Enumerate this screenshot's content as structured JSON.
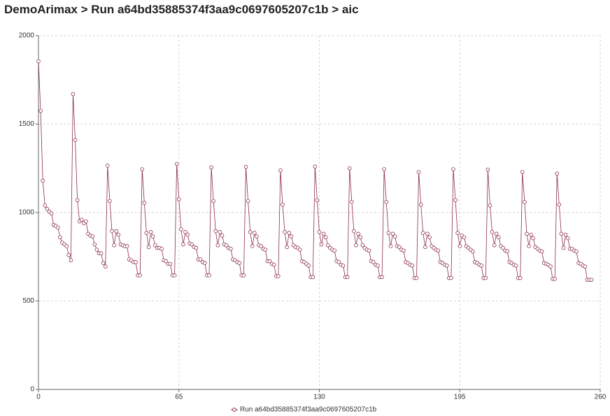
{
  "title": "DemoArimax > Run a64bd35885374f3aa9c0697605207c1b > aic",
  "chart_data": {
    "type": "line",
    "x": [
      0,
      1,
      2,
      3,
      4,
      5,
      6,
      7,
      8,
      9,
      10,
      11,
      12,
      13,
      14,
      15,
      16,
      17,
      18,
      19,
      20,
      21,
      22,
      23,
      24,
      25,
      26,
      27,
      28,
      29,
      30,
      31,
      32,
      33,
      34,
      35,
      36,
      37,
      38,
      39,
      40,
      41,
      42,
      43,
      44,
      45,
      46,
      47,
      48,
      49,
      50,
      51,
      52,
      53,
      54,
      55,
      56,
      57,
      58,
      59,
      60,
      61,
      62,
      63,
      64,
      65,
      66,
      67,
      68,
      69,
      70,
      71,
      72,
      73,
      74,
      75,
      76,
      77,
      78,
      79,
      80,
      81,
      82,
      83,
      84,
      85,
      86,
      87,
      88,
      89,
      90,
      91,
      92,
      93,
      94,
      95,
      96,
      97,
      98,
      99,
      100,
      101,
      102,
      103,
      104,
      105,
      106,
      107,
      108,
      109,
      110,
      111,
      112,
      113,
      114,
      115,
      116,
      117,
      118,
      119,
      120,
      121,
      122,
      123,
      124,
      125,
      126,
      127,
      128,
      129,
      130,
      131,
      132,
      133,
      134,
      135,
      136,
      137,
      138,
      139,
      140,
      141,
      142,
      143,
      144,
      145,
      146,
      147,
      148,
      149,
      150,
      151,
      152,
      153,
      154,
      155,
      156,
      157,
      158,
      159,
      160,
      161,
      162,
      163,
      164,
      165,
      166,
      167,
      168,
      169,
      170,
      171,
      172,
      173,
      174,
      175,
      176,
      177,
      178,
      179,
      180,
      181,
      182,
      183,
      184,
      185,
      186,
      187,
      188,
      189,
      190,
      191,
      192,
      193,
      194,
      195,
      196,
      197,
      198,
      199,
      200,
      201,
      202,
      203,
      204,
      205,
      206,
      207,
      208,
      209,
      210,
      211,
      212,
      213,
      214,
      215,
      216,
      217,
      218,
      219,
      220,
      221,
      222,
      223,
      224,
      225,
      226,
      227,
      228,
      229,
      230,
      231,
      232,
      233,
      234,
      235,
      236,
      237,
      238,
      239,
      240,
      241,
      242,
      243,
      244,
      245,
      246,
      247,
      248,
      249,
      250,
      251,
      252,
      253,
      254,
      255,
      256
    ],
    "series": [
      {
        "name": "Run a64bd35885374f3aa9c0697605207c1b",
        "color": "#8c2d4f",
        "values": [
          1855,
          1575,
          1180,
          1040,
          1020,
          1005,
          995,
          930,
          925,
          915,
          860,
          830,
          820,
          810,
          760,
          730,
          1670,
          1410,
          1070,
          950,
          960,
          940,
          950,
          880,
          870,
          865,
          820,
          790,
          770,
          770,
          715,
          695,
          1265,
          1065,
          895,
          815,
          895,
          875,
          820,
          815,
          810,
          810,
          735,
          730,
          720,
          720,
          645,
          645,
          1245,
          1055,
          885,
          805,
          890,
          865,
          815,
          800,
          800,
          795,
          730,
          725,
          710,
          710,
          645,
          645,
          1275,
          1075,
          905,
          820,
          890,
          875,
          825,
          820,
          805,
          800,
          735,
          735,
          720,
          715,
          645,
          645,
          1255,
          1065,
          895,
          815,
          890,
          870,
          820,
          815,
          800,
          795,
          735,
          730,
          720,
          715,
          645,
          645,
          1258,
          1065,
          890,
          810,
          885,
          865,
          815,
          810,
          795,
          790,
          725,
          725,
          710,
          705,
          640,
          640,
          1238,
          1045,
          890,
          805,
          885,
          865,
          815,
          805,
          800,
          790,
          725,
          720,
          710,
          700,
          635,
          635,
          1260,
          1070,
          890,
          820,
          880,
          860,
          815,
          800,
          790,
          785,
          725,
          720,
          705,
          700,
          635,
          635,
          1250,
          1060,
          895,
          815,
          880,
          860,
          815,
          800,
          790,
          785,
          725,
          720,
          705,
          700,
          635,
          635,
          1245,
          1060,
          885,
          810,
          880,
          865,
          810,
          805,
          790,
          785,
          720,
          715,
          705,
          700,
          630,
          630,
          1228,
          1045,
          885,
          805,
          880,
          860,
          810,
          800,
          790,
          785,
          720,
          715,
          705,
          700,
          630,
          630,
          1245,
          1070,
          885,
          810,
          870,
          860,
          810,
          800,
          790,
          780,
          720,
          715,
          705,
          700,
          630,
          630,
          1243,
          1040,
          890,
          815,
          880,
          860,
          810,
          800,
          785,
          780,
          720,
          715,
          705,
          700,
          630,
          630,
          1230,
          1060,
          880,
          810,
          875,
          855,
          805,
          795,
          785,
          780,
          715,
          710,
          705,
          695,
          625,
          625,
          1220,
          1045,
          880,
          800,
          875,
          855,
          795,
          795,
          785,
          780,
          715,
          710,
          700,
          695,
          620,
          620,
          620
        ]
      }
    ],
    "xlim": [
      0,
      260
    ],
    "xticks": [
      0,
      65,
      130,
      195,
      260
    ],
    "ylim": [
      0,
      2000
    ],
    "yticks": [
      0,
      500,
      1000,
      1500,
      2000
    ],
    "grid": true,
    "legend": "bottom"
  }
}
